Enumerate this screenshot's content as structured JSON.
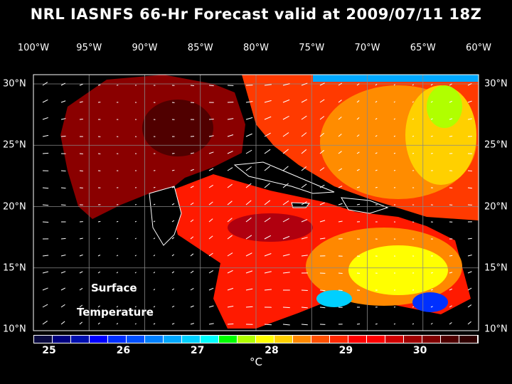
{
  "title": "NRL IASNFS  66-Hr Forecast valid at 2009/07/11 18Z",
  "lon_labels": [
    "100°W",
    "95°W",
    "90°W",
    "85°W",
    "80°W",
    "75°W",
    "70°W",
    "65°W",
    "60°W"
  ],
  "lat_labels": [
    "30°N",
    "25°N",
    "20°N",
    "15°N",
    "10°N"
  ],
  "map_label_1": "Surface",
  "map_label_2": "Temperature",
  "colorbar": {
    "ticks": [
      "25",
      "26",
      "27",
      "28",
      "29",
      "30"
    ],
    "unit": "°C",
    "range": [
      25,
      31
    ],
    "colors": [
      "#0a0a40",
      "#000080",
      "#0010b0",
      "#0000ff",
      "#0030ff",
      "#0050ff",
      "#0080ff",
      "#00a8ff",
      "#00d0ff",
      "#00ffff",
      "#00ff00",
      "#b0ff00",
      "#ffff00",
      "#ffd000",
      "#ff8800",
      "#ff5000",
      "#ff2800",
      "#ff0000",
      "#ff0000",
      "#d00000",
      "#a00000",
      "#800000",
      "#500000",
      "#300000"
    ]
  }
}
